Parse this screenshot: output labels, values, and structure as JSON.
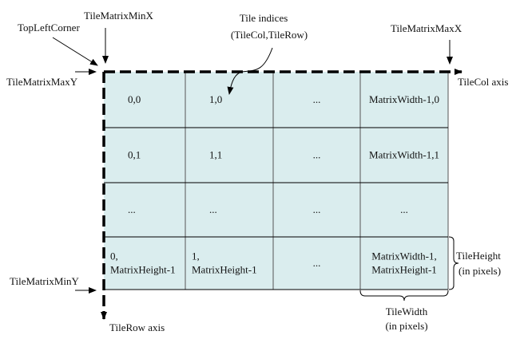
{
  "labels": {
    "top_left_corner": "TopLeftCorner",
    "min_x": "TileMatrixMinX",
    "max_x": "TileMatrixMaxX",
    "max_y": "TileMatrixMaxY",
    "min_y": "TileMatrixMinY",
    "tile_indices_1": "Tile indices",
    "tile_indices_2": "(TileCol,TileRow)",
    "tilecol_axis": "TileCol axis",
    "tilerow_axis": "TileRow axis",
    "tile_height_1": "TileHeight",
    "tile_height_2": "(in pixels)",
    "tile_width_1": "TileWidth",
    "tile_width_2": "(in pixels)"
  },
  "cells": [
    [
      "0,0",
      "1,0",
      "...",
      "MatrixWidth-1,0"
    ],
    [
      "0,1",
      "1,1",
      "...",
      "MatrixWidth-1,1"
    ],
    [
      "...",
      "...",
      "...",
      "..."
    ],
    [
      [
        "0,",
        "MatrixHeight-1"
      ],
      [
        "1,",
        "MatrixHeight-1"
      ],
      "...",
      [
        "MatrixWidth-1,",
        "MatrixHeight-1"
      ]
    ]
  ],
  "colors": {
    "tile_fill": "#daedee",
    "grid_line": "#555555"
  }
}
